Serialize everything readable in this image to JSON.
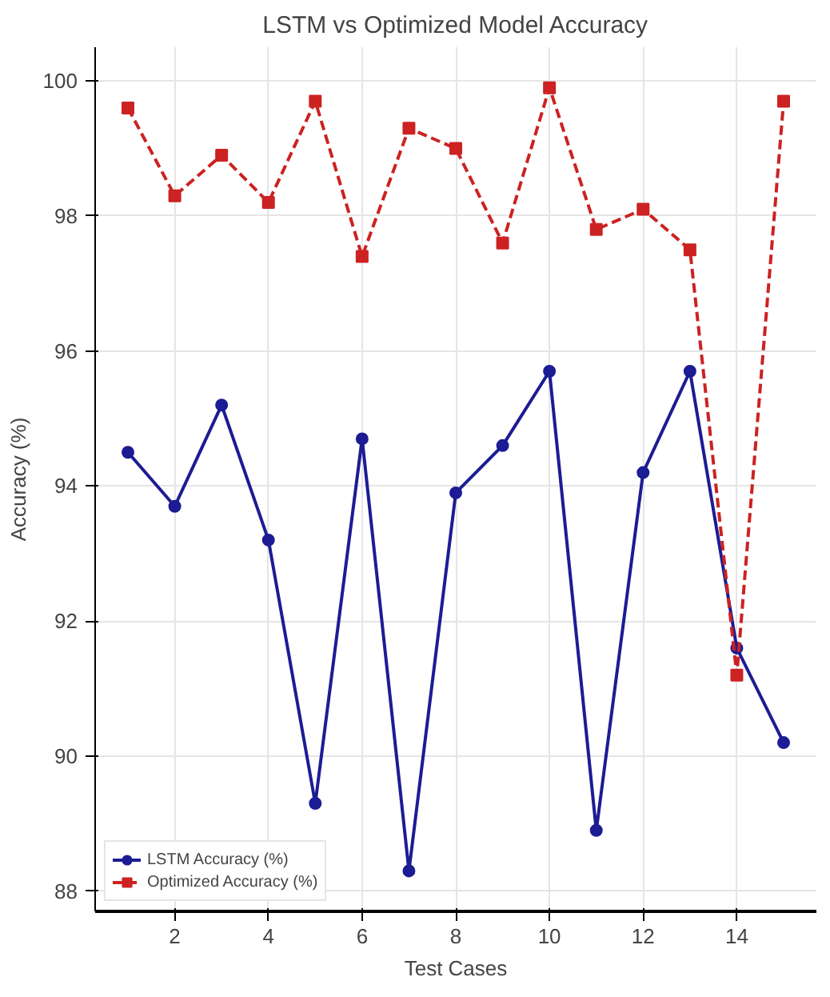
{
  "chart_data": {
    "type": "line",
    "title": "LSTM vs Optimized Model Accuracy",
    "xlabel": "Test Cases",
    "ylabel": "Accuracy (%)",
    "x": [
      1,
      2,
      3,
      4,
      5,
      6,
      7,
      8,
      9,
      10,
      11,
      12,
      13,
      14,
      15
    ],
    "series": [
      {
        "name": "LSTM Accuracy (%)",
        "color": "#1c1c94",
        "marker": "circle",
        "line_style": "solid",
        "values": [
          94.5,
          93.7,
          95.2,
          93.2,
          89.3,
          94.7,
          88.3,
          93.9,
          94.6,
          95.7,
          88.9,
          94.2,
          95.7,
          91.6,
          90.2
        ]
      },
      {
        "name": "Optimized Accuracy (%)",
        "color": "#cc2222",
        "marker": "square",
        "line_style": "dashed",
        "values": [
          99.6,
          98.3,
          98.9,
          98.2,
          99.7,
          97.4,
          99.3,
          99.0,
          97.6,
          99.9,
          97.8,
          98.1,
          97.5,
          91.2,
          99.7
        ]
      }
    ],
    "xlim": [
      0.3,
      15.7
    ],
    "ylim": [
      87.7,
      100.5
    ],
    "xticks": [
      2,
      4,
      6,
      8,
      10,
      12,
      14
    ],
    "yticks": [
      88,
      90,
      92,
      94,
      96,
      98,
      100
    ],
    "grid": true,
    "legend": "bottom left"
  }
}
